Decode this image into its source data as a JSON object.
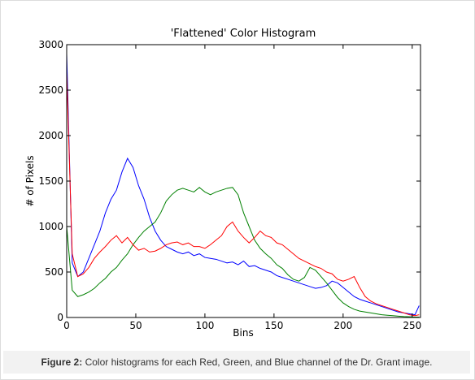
{
  "chart_data": {
    "type": "line",
    "title": "'Flattened' Color Histogram",
    "x_label": "Bins",
    "y_label": "# of Pixels",
    "x": [
      0,
      4,
      8,
      12,
      16,
      20,
      24,
      28,
      32,
      36,
      40,
      44,
      48,
      52,
      56,
      60,
      64,
      68,
      72,
      76,
      80,
      84,
      88,
      92,
      96,
      100,
      104,
      108,
      112,
      116,
      120,
      124,
      128,
      132,
      136,
      140,
      144,
      148,
      152,
      156,
      160,
      164,
      168,
      172,
      176,
      180,
      184,
      188,
      192,
      196,
      200,
      204,
      208,
      212,
      216,
      220,
      224,
      228,
      232,
      236,
      240,
      244,
      248,
      252,
      255
    ],
    "series": [
      {
        "name": "b",
        "color": "#0000ff",
        "values": [
          2900,
          600,
          450,
          500,
          650,
          800,
          950,
          1150,
          1300,
          1400,
          1600,
          1750,
          1650,
          1450,
          1300,
          1100,
          950,
          850,
          780,
          750,
          720,
          700,
          720,
          680,
          700,
          660,
          650,
          640,
          620,
          600,
          610,
          580,
          620,
          560,
          570,
          540,
          520,
          500,
          460,
          440,
          420,
          400,
          380,
          360,
          340,
          320,
          330,
          350,
          400,
          380,
          330,
          280,
          230,
          200,
          180,
          160,
          140,
          120,
          100,
          80,
          60,
          50,
          40,
          30,
          130
        ]
      },
      {
        "name": "g",
        "color": "#008000",
        "values": [
          1000,
          300,
          230,
          250,
          280,
          320,
          380,
          430,
          500,
          550,
          630,
          700,
          800,
          880,
          950,
          1000,
          1050,
          1150,
          1280,
          1350,
          1400,
          1420,
          1400,
          1380,
          1430,
          1380,
          1350,
          1380,
          1400,
          1420,
          1430,
          1350,
          1150,
          1000,
          850,
          760,
          700,
          650,
          580,
          540,
          470,
          420,
          400,
          440,
          550,
          520,
          450,
          380,
          300,
          220,
          160,
          120,
          90,
          70,
          60,
          50,
          40,
          30,
          25,
          20,
          15,
          10,
          8,
          5,
          5
        ]
      },
      {
        "name": "r",
        "color": "#ff0000",
        "values": [
          2700,
          700,
          450,
          480,
          550,
          650,
          720,
          780,
          850,
          900,
          820,
          880,
          800,
          740,
          760,
          720,
          730,
          760,
          800,
          820,
          830,
          800,
          820,
          780,
          780,
          760,
          800,
          850,
          900,
          1000,
          1050,
          950,
          880,
          820,
          880,
          950,
          900,
          880,
          820,
          800,
          750,
          700,
          650,
          620,
          590,
          560,
          540,
          500,
          480,
          420,
          400,
          420,
          450,
          330,
          230,
          180,
          150,
          130,
          110,
          90,
          70,
          50,
          30,
          20,
          30
        ]
      }
    ],
    "xlim": [
      0,
      256
    ],
    "xticks": [
      0,
      50,
      100,
      150,
      200,
      250
    ],
    "ylim": [
      0,
      3000
    ],
    "yticks": [
      0,
      500,
      1000,
      1500,
      2000,
      2500,
      3000
    ],
    "caption_label": "Figure 2:",
    "caption": "Color histograms for each Red, Green, and Blue channel of the Dr. Grant image."
  }
}
